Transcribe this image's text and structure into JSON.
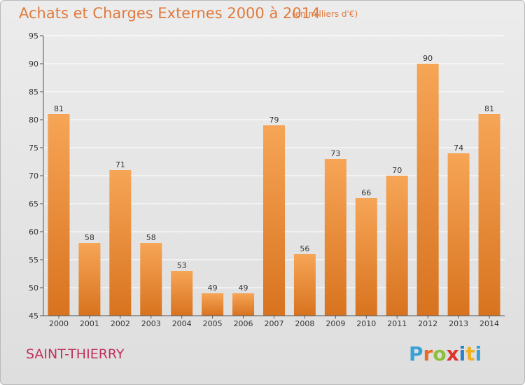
{
  "chart_data": {
    "type": "bar",
    "title": "Achats et Charges Externes 2000 à 2014",
    "subtitle": "(en milliers d'€)",
    "categories": [
      "2000",
      "2001",
      "2002",
      "2003",
      "2004",
      "2005",
      "2006",
      "2007",
      "2008",
      "2009",
      "2010",
      "2011",
      "2012",
      "2013",
      "2014"
    ],
    "values": [
      81,
      58,
      71,
      58,
      53,
      49,
      49,
      79,
      56,
      73,
      66,
      70,
      90,
      74,
      81
    ],
    "ylim": [
      45,
      95
    ],
    "yticks": [
      45,
      50,
      55,
      60,
      65,
      70,
      75,
      80,
      85,
      90,
      95
    ],
    "xlabel": "",
    "ylabel": "",
    "grid": "horizontal",
    "bar_color_light": "#f6a556",
    "bar_color_dark": "#d8731f"
  },
  "commune": "SAINT-THIERRY",
  "brand": {
    "letters": [
      "P",
      "r",
      "o",
      "x",
      "i",
      "t",
      "i"
    ],
    "colors": [
      "#3aa0d8",
      "#e86a2a",
      "#8cbf3a",
      "#e2302a",
      "#2b7fc9",
      "#f0b020",
      "#3aa0d8"
    ]
  }
}
